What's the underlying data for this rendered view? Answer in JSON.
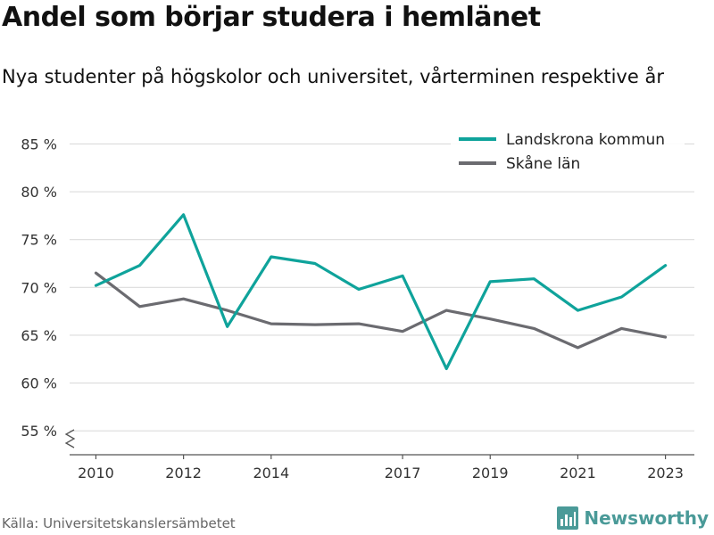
{
  "header": {
    "title": "Andel som börjar studera i hemlänet",
    "subtitle": "Nya studenter på högskolor och universitet, vårterminen respektive år"
  },
  "footer": {
    "source": "Källa: Universitetskanslersämbetet",
    "brand": "Newsworthy",
    "brand_icon": "bar-chart-logo-icon",
    "brand_color": "#4a9a98"
  },
  "chart_data": {
    "type": "line",
    "x": [
      2010,
      2011,
      2012,
      2013,
      2014,
      2015,
      2016,
      2017,
      2018,
      2019,
      2020,
      2021,
      2022,
      2023
    ],
    "x_tick_labels": [
      "2010",
      "2012",
      "2014",
      "2017",
      "2019",
      "2021",
      "2023"
    ],
    "y_tick_values": [
      55,
      60,
      65,
      70,
      75,
      80,
      85
    ],
    "y_tick_labels": [
      "55 %",
      "60 %",
      "65 %",
      "70 %",
      "75 %",
      "80 %",
      "85 %"
    ],
    "ylim": [
      52.5,
      87
    ],
    "xlabel": "",
    "ylabel": "",
    "grid": true,
    "legend_position": "top-right",
    "series": [
      {
        "name": "Landskrona kommun",
        "color": "#0fa39b",
        "values": [
          70.2,
          72.3,
          77.6,
          65.9,
          73.2,
          72.5,
          69.8,
          71.2,
          61.5,
          70.6,
          70.9,
          67.6,
          69.0,
          72.3
        ]
      },
      {
        "name": "Skåne län",
        "color": "#6b6b70",
        "values": [
          71.5,
          68.0,
          68.8,
          67.6,
          66.2,
          66.1,
          66.2,
          65.4,
          67.6,
          66.7,
          65.7,
          63.7,
          65.7,
          64.8
        ]
      }
    ]
  }
}
